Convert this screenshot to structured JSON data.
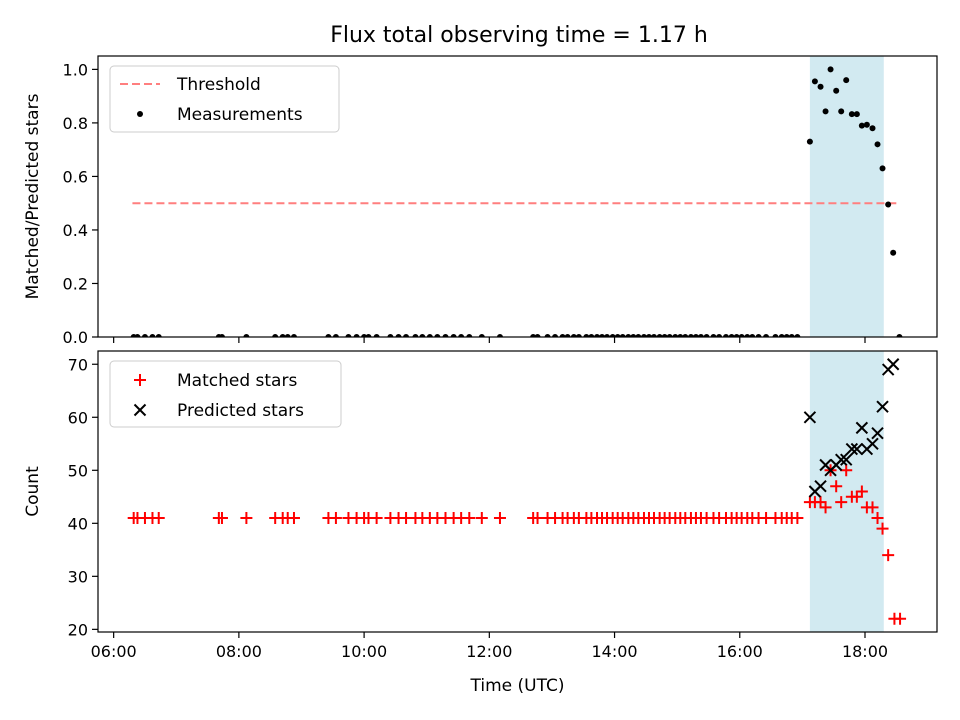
{
  "title": "Flux total observing time = 1.17 h",
  "colors": {
    "threshold": "#ff7f7f",
    "measurement": "#000000",
    "matched": "#ff0000",
    "predicted": "#000000",
    "band": "#add8e6"
  },
  "chart_data": [
    {
      "type": "scatter",
      "ylabel": "Matched/Predicted stars",
      "xlim": [
        5.75,
        19.15
      ],
      "ylim": [
        0,
        1.05
      ],
      "yticks": [
        0.0,
        0.2,
        0.4,
        0.6,
        0.8,
        1.0
      ],
      "ytick_labels": [
        "0.0",
        "0.2",
        "0.4",
        "0.6",
        "0.8",
        "1.0"
      ],
      "grid": false,
      "legend_position": "upper-left",
      "highlight_band": [
        17.12,
        18.3
      ],
      "threshold": {
        "name": "Threshold",
        "value": 0.5,
        "x_range": [
          6.3,
          18.5
        ]
      },
      "measurements": {
        "name": "Measurements",
        "zero_times": [
          6.32,
          6.38,
          6.5,
          6.62,
          6.72,
          7.68,
          7.73,
          8.12,
          8.58,
          8.7,
          8.78,
          8.88,
          9.43,
          9.55,
          9.75,
          9.88,
          10.0,
          10.07,
          10.2,
          10.42,
          10.55,
          10.67,
          10.82,
          10.93,
          11.05,
          11.17,
          11.3,
          11.43,
          11.55,
          11.68,
          11.88,
          12.17,
          12.7,
          12.77,
          12.93,
          13.05,
          13.17,
          13.25,
          13.35,
          13.43,
          13.55,
          13.63,
          13.72,
          13.8,
          13.88,
          13.97,
          14.05,
          14.13,
          14.22,
          14.3,
          14.38,
          14.47,
          14.55,
          14.63,
          14.72,
          14.8,
          14.88,
          14.97,
          15.05,
          15.13,
          15.22,
          15.3,
          15.38,
          15.47,
          15.58,
          15.67,
          15.78,
          15.87,
          15.95,
          16.03,
          16.12,
          16.2,
          16.3,
          16.42,
          16.57,
          16.67,
          16.75,
          16.83,
          16.92,
          18.55
        ],
        "points": [
          {
            "x": 17.12,
            "y": 0.73
          },
          {
            "x": 17.2,
            "y": 0.955
          },
          {
            "x": 17.29,
            "y": 0.935
          },
          {
            "x": 17.37,
            "y": 0.843
          },
          {
            "x": 17.45,
            "y": 1.0
          },
          {
            "x": 17.54,
            "y": 0.92
          },
          {
            "x": 17.62,
            "y": 0.843
          },
          {
            "x": 17.7,
            "y": 0.96
          },
          {
            "x": 17.79,
            "y": 0.833
          },
          {
            "x": 17.87,
            "y": 0.833
          },
          {
            "x": 17.95,
            "y": 0.79
          },
          {
            "x": 18.03,
            "y": 0.793
          },
          {
            "x": 18.12,
            "y": 0.78
          },
          {
            "x": 18.2,
            "y": 0.72
          },
          {
            "x": 18.28,
            "y": 0.63
          },
          {
            "x": 18.37,
            "y": 0.495
          },
          {
            "x": 18.45,
            "y": 0.315
          }
        ]
      }
    },
    {
      "type": "scatter",
      "xlabel": "Time (UTC)",
      "ylabel": "Count",
      "xlim": [
        5.75,
        19.15
      ],
      "ylim": [
        19.5,
        72.5
      ],
      "xticks": [
        6,
        8,
        10,
        12,
        14,
        16,
        18
      ],
      "xtick_labels": [
        "06:00",
        "08:00",
        "10:00",
        "12:00",
        "14:00",
        "16:00",
        "18:00"
      ],
      "yticks": [
        20,
        30,
        40,
        50,
        60,
        70
      ],
      "ytick_labels": [
        "20",
        "30",
        "40",
        "50",
        "60",
        "70"
      ],
      "grid": false,
      "legend_position": "upper-left",
      "highlight_band": [
        17.12,
        18.3
      ],
      "matched_stars": {
        "name": "Matched stars",
        "constant_value": 41,
        "constant_times": [
          6.32,
          6.38,
          6.5,
          6.62,
          6.72,
          7.68,
          7.73,
          8.12,
          8.58,
          8.7,
          8.78,
          8.88,
          9.43,
          9.55,
          9.75,
          9.88,
          10.0,
          10.07,
          10.2,
          10.42,
          10.55,
          10.67,
          10.82,
          10.93,
          11.05,
          11.17,
          11.3,
          11.43,
          11.55,
          11.68,
          11.88,
          12.17,
          12.7,
          12.77,
          12.93,
          13.05,
          13.17,
          13.25,
          13.35,
          13.43,
          13.55,
          13.63,
          13.72,
          13.8,
          13.88,
          13.97,
          14.05,
          14.13,
          14.22,
          14.3,
          14.38,
          14.47,
          14.55,
          14.63,
          14.72,
          14.8,
          14.88,
          14.97,
          15.05,
          15.13,
          15.22,
          15.3,
          15.38,
          15.47,
          15.58,
          15.67,
          15.78,
          15.87,
          15.95,
          16.03,
          16.12,
          16.2,
          16.3,
          16.42,
          16.57,
          16.67,
          16.75,
          16.83,
          16.92
        ],
        "points": [
          {
            "x": 17.12,
            "y": 44
          },
          {
            "x": 17.2,
            "y": 44
          },
          {
            "x": 17.29,
            "y": 44
          },
          {
            "x": 17.37,
            "y": 43
          },
          {
            "x": 17.45,
            "y": 50
          },
          {
            "x": 17.54,
            "y": 47
          },
          {
            "x": 17.62,
            "y": 44
          },
          {
            "x": 17.7,
            "y": 50
          },
          {
            "x": 17.79,
            "y": 45
          },
          {
            "x": 17.87,
            "y": 45
          },
          {
            "x": 17.95,
            "y": 46
          },
          {
            "x": 18.03,
            "y": 43
          },
          {
            "x": 18.12,
            "y": 43
          },
          {
            "x": 18.2,
            "y": 41
          },
          {
            "x": 18.28,
            "y": 39
          },
          {
            "x": 18.37,
            "y": 34
          },
          {
            "x": 18.47,
            "y": 22
          },
          {
            "x": 18.56,
            "y": 22
          }
        ]
      },
      "predicted_stars": {
        "name": "Predicted stars",
        "points": [
          {
            "x": 17.12,
            "y": 60
          },
          {
            "x": 17.2,
            "y": 46
          },
          {
            "x": 17.29,
            "y": 47
          },
          {
            "x": 17.37,
            "y": 51
          },
          {
            "x": 17.45,
            "y": 50
          },
          {
            "x": 17.54,
            "y": 51
          },
          {
            "x": 17.62,
            "y": 52
          },
          {
            "x": 17.7,
            "y": 52
          },
          {
            "x": 17.79,
            "y": 54
          },
          {
            "x": 17.87,
            "y": 54
          },
          {
            "x": 17.95,
            "y": 58
          },
          {
            "x": 18.03,
            "y": 54
          },
          {
            "x": 18.12,
            "y": 55
          },
          {
            "x": 18.2,
            "y": 57
          },
          {
            "x": 18.28,
            "y": 62
          },
          {
            "x": 18.37,
            "y": 69
          },
          {
            "x": 18.45,
            "y": 70
          }
        ]
      }
    }
  ]
}
